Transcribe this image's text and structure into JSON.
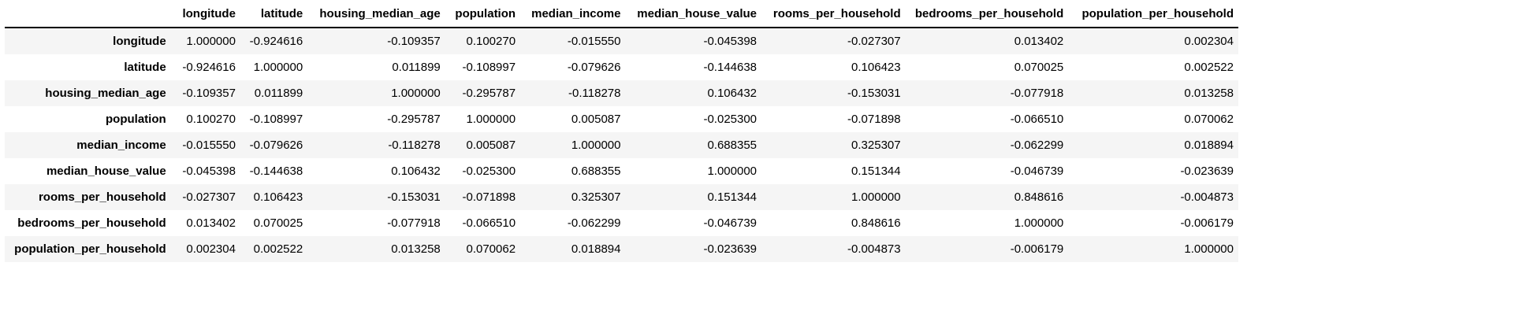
{
  "table": {
    "index_header": "",
    "columns": [
      "longitude",
      "latitude",
      "housing_median_age",
      "population",
      "median_income",
      "median_house_value",
      "rooms_per_household",
      "bedrooms_per_household",
      "population_per_household"
    ],
    "rows": [
      {
        "label": "longitude",
        "values": [
          "1.000000",
          "-0.924616",
          "-0.109357",
          "0.100270",
          "-0.015550",
          "-0.045398",
          "-0.027307",
          "0.013402",
          "0.002304"
        ]
      },
      {
        "label": "latitude",
        "values": [
          "-0.924616",
          "1.000000",
          "0.011899",
          "-0.108997",
          "-0.079626",
          "-0.144638",
          "0.106423",
          "0.070025",
          "0.002522"
        ]
      },
      {
        "label": "housing_median_age",
        "values": [
          "-0.109357",
          "0.011899",
          "1.000000",
          "-0.295787",
          "-0.118278",
          "0.106432",
          "-0.153031",
          "-0.077918",
          "0.013258"
        ]
      },
      {
        "label": "population",
        "values": [
          "0.100270",
          "-0.108997",
          "-0.295787",
          "1.000000",
          "0.005087",
          "-0.025300",
          "-0.071898",
          "-0.066510",
          "0.070062"
        ]
      },
      {
        "label": "median_income",
        "values": [
          "-0.015550",
          "-0.079626",
          "-0.118278",
          "0.005087",
          "1.000000",
          "0.688355",
          "0.325307",
          "-0.062299",
          "0.018894"
        ]
      },
      {
        "label": "median_house_value",
        "values": [
          "-0.045398",
          "-0.144638",
          "0.106432",
          "-0.025300",
          "0.688355",
          "1.000000",
          "0.151344",
          "-0.046739",
          "-0.023639"
        ]
      },
      {
        "label": "rooms_per_household",
        "values": [
          "-0.027307",
          "0.106423",
          "-0.153031",
          "-0.071898",
          "0.325307",
          "0.151344",
          "1.000000",
          "0.848616",
          "-0.004873"
        ]
      },
      {
        "label": "bedrooms_per_household",
        "values": [
          "0.013402",
          "0.070025",
          "-0.077918",
          "-0.066510",
          "-0.062299",
          "-0.046739",
          "0.848616",
          "1.000000",
          "-0.006179"
        ]
      },
      {
        "label": "population_per_household",
        "values": [
          "0.002304",
          "0.002522",
          "0.013258",
          "0.070062",
          "0.018894",
          "-0.023639",
          "-0.004873",
          "-0.006179",
          "1.000000"
        ]
      }
    ]
  },
  "colors": {
    "stripe": "#f5f5f5",
    "header_rule": "#000000",
    "text": "#000000"
  }
}
